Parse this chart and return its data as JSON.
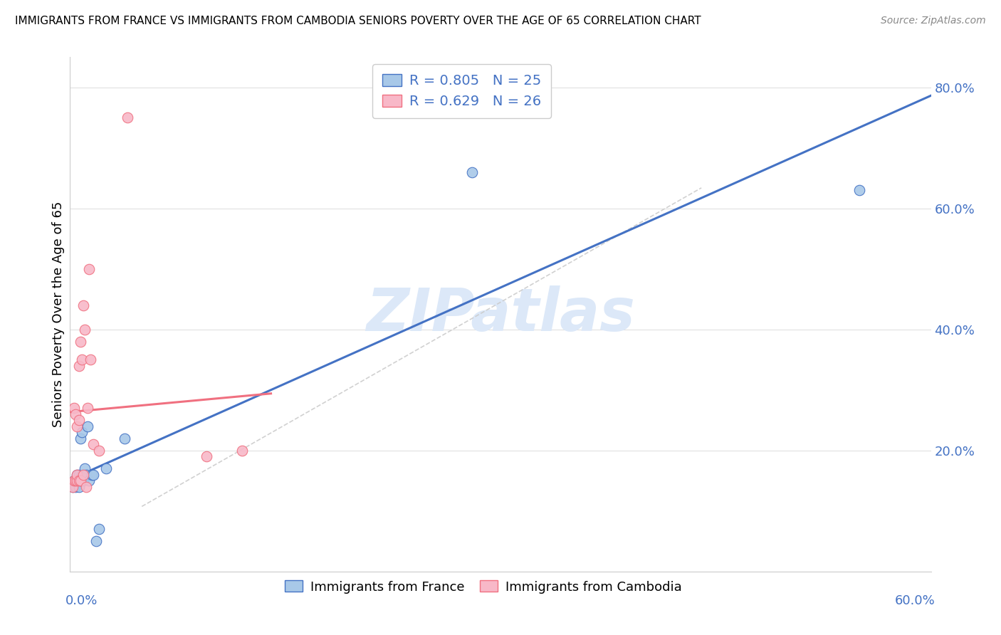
{
  "title": "IMMIGRANTS FROM FRANCE VS IMMIGRANTS FROM CAMBODIA SENIORS POVERTY OVER THE AGE OF 65 CORRELATION CHART",
  "source": "Source: ZipAtlas.com",
  "ylabel": "Seniors Poverty Over the Age of 65",
  "ylim": [
    0.0,
    0.85
  ],
  "xlim": [
    0.0,
    0.6
  ],
  "yticks": [
    0.0,
    0.2,
    0.4,
    0.6,
    0.8
  ],
  "ytick_labels": [
    "",
    "20.0%",
    "40.0%",
    "60.0%",
    "80.0%"
  ],
  "france_R": 0.805,
  "france_N": 25,
  "cambodia_R": 0.629,
  "cambodia_N": 26,
  "france_color": "#a8c8e8",
  "cambodia_color": "#f8b8c8",
  "france_line_color": "#4472C4",
  "cambodia_line_color": "#f07080",
  "watermark": "ZIPatlas",
  "watermark_color": "#dce8f8",
  "france_x": [
    0.002,
    0.003,
    0.004,
    0.005,
    0.005,
    0.006,
    0.006,
    0.007,
    0.007,
    0.008,
    0.008,
    0.009,
    0.009,
    0.01,
    0.011,
    0.012,
    0.013,
    0.015,
    0.016,
    0.018,
    0.02,
    0.025,
    0.038,
    0.28,
    0.55
  ],
  "france_y": [
    0.14,
    0.15,
    0.14,
    0.16,
    0.15,
    0.16,
    0.14,
    0.15,
    0.22,
    0.16,
    0.23,
    0.15,
    0.16,
    0.17,
    0.16,
    0.24,
    0.15,
    0.16,
    0.16,
    0.05,
    0.07,
    0.17,
    0.22,
    0.66,
    0.63
  ],
  "cambodia_x": [
    0.002,
    0.003,
    0.003,
    0.004,
    0.004,
    0.005,
    0.005,
    0.005,
    0.006,
    0.006,
    0.006,
    0.007,
    0.007,
    0.008,
    0.009,
    0.009,
    0.01,
    0.011,
    0.012,
    0.013,
    0.014,
    0.016,
    0.02,
    0.04,
    0.095,
    0.12
  ],
  "cambodia_y": [
    0.14,
    0.15,
    0.27,
    0.15,
    0.26,
    0.24,
    0.15,
    0.16,
    0.15,
    0.25,
    0.34,
    0.15,
    0.38,
    0.35,
    0.16,
    0.44,
    0.4,
    0.14,
    0.27,
    0.5,
    0.35,
    0.21,
    0.2,
    0.75,
    0.19,
    0.2
  ]
}
